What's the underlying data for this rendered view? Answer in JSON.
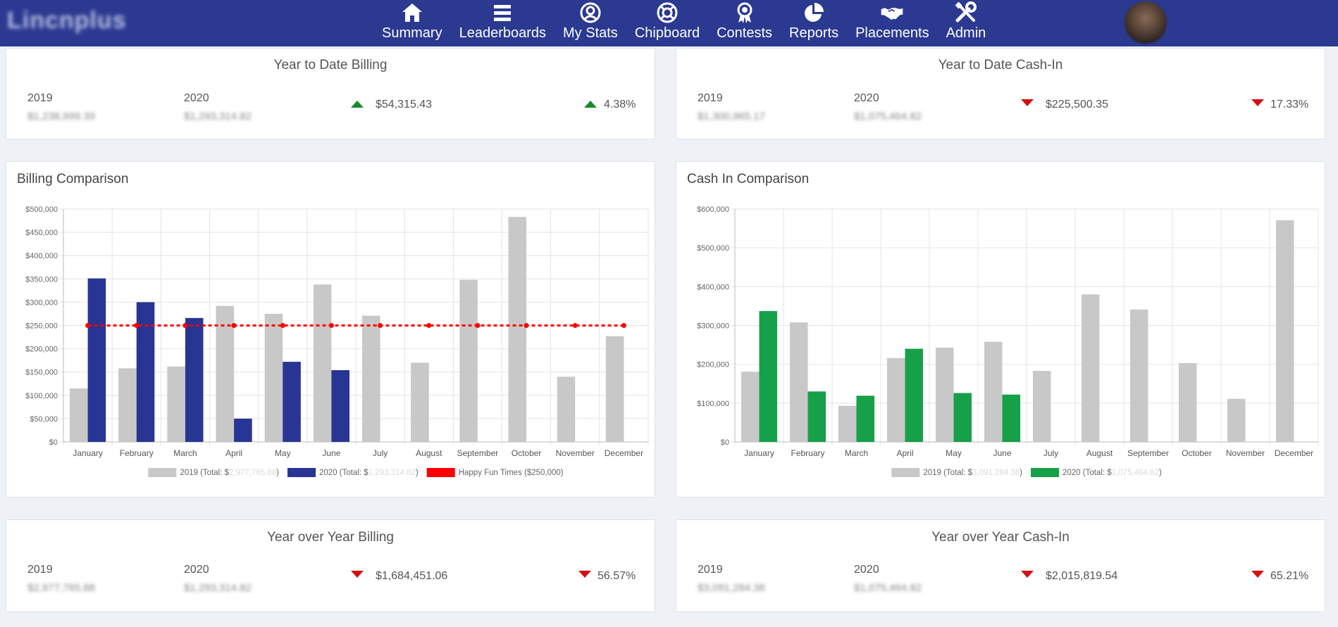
{
  "nav": {
    "items": [
      {
        "label": "Summary",
        "icon": "home-icon"
      },
      {
        "label": "Leaderboards",
        "icon": "list-icon"
      },
      {
        "label": "My Stats",
        "icon": "user-circle-icon"
      },
      {
        "label": "Chipboard",
        "icon": "lifebuoy-icon"
      },
      {
        "label": "Contests",
        "icon": "award-icon"
      },
      {
        "label": "Reports",
        "icon": "pie-chart-icon"
      },
      {
        "label": "Placements",
        "icon": "handshake-icon"
      },
      {
        "label": "Admin",
        "icon": "tools-icon"
      }
    ]
  },
  "colors": {
    "navbar": "#2b3990",
    "up": "#1a8a28",
    "down": "#d40f15",
    "gray_series": "#c8c8c8",
    "billing_2020": "#283593",
    "cash_2020": "#16a04a",
    "goal_line": "#ff0000"
  },
  "ytd_billing": {
    "title": "Year to Date Billing",
    "year1_label": "2019",
    "year1_value": "$1,238,999.39",
    "year2_label": "2020",
    "year2_value": "$1,293,314.82",
    "diff_value": "$54,315.43",
    "diff_direction": "up",
    "pct_value": "4.38%",
    "pct_direction": "up"
  },
  "ytd_cash": {
    "title": "Year to Date Cash-In",
    "year1_label": "2019",
    "year1_value": "$1,300,965.17",
    "year2_label": "2020",
    "year2_value": "$1,075,464.82",
    "diff_value": "$225,500.35",
    "diff_direction": "down",
    "pct_value": "17.33%",
    "pct_direction": "down"
  },
  "yoy_billing": {
    "title": "Year over Year Billing",
    "year1_label": "2019",
    "year1_value": "$2,977,765.88",
    "year2_label": "2020",
    "year2_value": "$1,293,314.82",
    "diff_value": "$1,684,451.06",
    "diff_direction": "down",
    "pct_value": "56.57%",
    "pct_direction": "down"
  },
  "yoy_cash": {
    "title": "Year over Year Cash-In",
    "year1_label": "2019",
    "year1_value": "$3,091,284.36",
    "year2_label": "2020",
    "year2_value": "$1,075,464.82",
    "diff_value": "$2,015,819.54",
    "diff_direction": "down",
    "pct_value": "65.21%",
    "pct_direction": "down"
  },
  "billing_chart_title": "Billing Comparison",
  "cash_chart_title": "Cash In Comparison",
  "chart_data": [
    {
      "type": "bar",
      "title": "Billing Comparison",
      "categories": [
        "January",
        "February",
        "March",
        "April",
        "May",
        "June",
        "July",
        "August",
        "September",
        "October",
        "November",
        "December"
      ],
      "series": [
        {
          "name": "2019",
          "legend": "2019 (Total: $2,977,765.88)",
          "legend_prefix": "2019 (Total: $",
          "legend_hidden": "2,977,765.88",
          "legend_suffix": ")",
          "color": "#c8c8c8",
          "values": [
            115000,
            158000,
            162000,
            292000,
            275000,
            338000,
            271000,
            170000,
            348000,
            483000,
            140000,
            227000
          ]
        },
        {
          "name": "2020",
          "legend": "2020 (Total: $1,293,314.82)",
          "legend_prefix": "2020 (Total: $",
          "legend_hidden": "1,293,314.82",
          "legend_suffix": ")",
          "color": "#283593",
          "values": [
            351000,
            300000,
            266000,
            50000,
            172000,
            154000,
            null,
            null,
            null,
            null,
            null,
            null
          ]
        },
        {
          "name": "Happy Fun Times",
          "legend": "Happy Fun Times ($250,000)",
          "type": "line",
          "color": "#ff0000",
          "values": [
            250000,
            250000,
            250000,
            250000,
            250000,
            250000,
            250000,
            250000,
            250000,
            250000,
            250000,
            250000
          ]
        }
      ],
      "ylim": [
        0,
        500000
      ],
      "yticks": [
        "$0",
        "$50,000",
        "$100,000",
        "$150,000",
        "$200,000",
        "$250,000",
        "$300,000",
        "$350,000",
        "$400,000",
        "$450,000",
        "$500,000"
      ],
      "grid": true,
      "legend_position": "bottom"
    },
    {
      "type": "bar",
      "title": "Cash In Comparison",
      "categories": [
        "January",
        "February",
        "March",
        "April",
        "May",
        "June",
        "July",
        "August",
        "September",
        "October",
        "November",
        "December"
      ],
      "series": [
        {
          "name": "2019",
          "legend": "2019 (Total: $3,091,284.36)",
          "legend_prefix": "2019 (Total: $",
          "legend_hidden": "3,091,284.36",
          "legend_suffix": ")",
          "color": "#c8c8c8",
          "values": [
            181000,
            308000,
            93000,
            216000,
            243000,
            258000,
            183000,
            380000,
            341000,
            203000,
            111000,
            571000
          ]
        },
        {
          "name": "2020",
          "legend": "2020 (Total: $1,075,464.82)",
          "legend_prefix": "2020 (Total: $",
          "legend_hidden": "1,075,464.82",
          "legend_suffix": ")",
          "color": "#16a04a",
          "values": [
            337000,
            130000,
            119000,
            240000,
            126000,
            122000,
            null,
            null,
            null,
            null,
            null,
            null
          ]
        }
      ],
      "ylim": [
        0,
        600000
      ],
      "yticks": [
        "$0",
        "$100,000",
        "$200,000",
        "$300,000",
        "$400,000",
        "$500,000",
        "$600,000"
      ],
      "grid": true,
      "legend_position": "bottom"
    }
  ]
}
